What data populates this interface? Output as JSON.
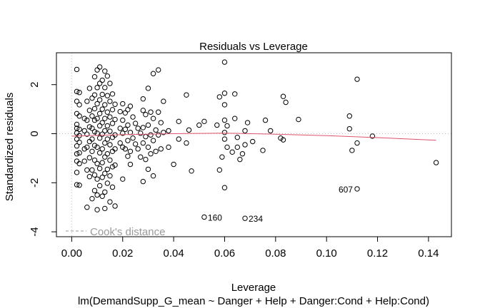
{
  "chart_data": {
    "type": "scatter",
    "title": "Residuals vs Leverage",
    "xlabel": "Leverage",
    "ylabel": "Standardized residuals",
    "subtitle": "lm(DemandSupp_G_mean ~ Danger + Help + Danger:Cond + Help:Cond)",
    "xlim": [
      -0.006,
      0.149
    ],
    "ylim": [
      -4.2,
      3.3
    ],
    "x_ticks": [
      "0.00",
      "0.02",
      "0.04",
      "0.06",
      "0.08",
      "0.10",
      "0.12",
      "0.14"
    ],
    "x_tick_values": [
      0.0,
      0.02,
      0.04,
      0.06,
      0.08,
      0.1,
      0.12,
      0.14
    ],
    "y_ticks": [
      "-4",
      "-2",
      "0",
      "2"
    ],
    "y_tick_values": [
      -4,
      -2,
      0,
      2
    ],
    "legend": {
      "label": "Cook's distance",
      "position": "bottom-left",
      "line_style": "dashed",
      "color": "#9a9a9a"
    },
    "point_color": "#000000",
    "smoother_color": "#df536b",
    "reference_line_color": "#bbbbbb",
    "smoother": [
      [
        0.0,
        -0.1
      ],
      [
        0.01,
        -0.07
      ],
      [
        0.02,
        -0.04
      ],
      [
        0.04,
        0.0
      ],
      [
        0.06,
        0.02
      ],
      [
        0.08,
        -0.02
      ],
      [
        0.1,
        -0.08
      ],
      [
        0.12,
        -0.16
      ],
      [
        0.143,
        -0.27
      ]
    ],
    "labeled_points": [
      {
        "label": "160",
        "x": 0.052,
        "y": -3.4
      },
      {
        "label": "234",
        "x": 0.068,
        "y": -3.45
      },
      {
        "label": "607",
        "x": 0.112,
        "y": -2.25
      }
    ],
    "points": [
      [
        0.002,
        2.62
      ],
      [
        0.002,
        1.72
      ],
      [
        0.002,
        1.32
      ],
      [
        0.002,
        0.82
      ],
      [
        0.002,
        0.38
      ],
      [
        0.002,
        0.22
      ],
      [
        0.002,
        0.03
      ],
      [
        0.002,
        -0.22
      ],
      [
        0.002,
        -0.5
      ],
      [
        0.002,
        -0.82
      ],
      [
        0.002,
        -1.12
      ],
      [
        0.002,
        -1.58
      ],
      [
        0.002,
        -2.08
      ],
      [
        0.003,
        1.68
      ],
      [
        0.003,
        1.18
      ],
      [
        0.003,
        0.72
      ],
      [
        0.003,
        0.18
      ],
      [
        0.003,
        -0.08
      ],
      [
        0.003,
        -0.35
      ],
      [
        0.003,
        -0.78
      ],
      [
        0.003,
        -1.22
      ],
      [
        0.003,
        -2.1
      ],
      [
        0.005,
        0.62
      ],
      [
        0.005,
        0.12
      ],
      [
        0.005,
        -0.62
      ],
      [
        0.005,
        -1.12
      ],
      [
        0.006,
        1.32
      ],
      [
        0.006,
        0.55
      ],
      [
        0.006,
        -0.02
      ],
      [
        0.006,
        -0.55
      ],
      [
        0.006,
        -1.48
      ],
      [
        0.006,
        -3.0
      ],
      [
        0.007,
        1.85
      ],
      [
        0.007,
        0.95
      ],
      [
        0.007,
        0.28
      ],
      [
        0.007,
        -0.32
      ],
      [
        0.007,
        -0.98
      ],
      [
        0.007,
        -1.75
      ],
      [
        0.008,
        1.45
      ],
      [
        0.008,
        0.72
      ],
      [
        0.008,
        0.22
      ],
      [
        0.008,
        -0.22
      ],
      [
        0.008,
        -0.72
      ],
      [
        0.008,
        -1.48
      ],
      [
        0.008,
        -2.65
      ],
      [
        0.009,
        2.32
      ],
      [
        0.009,
        1.58
      ],
      [
        0.009,
        1.02
      ],
      [
        0.009,
        0.55
      ],
      [
        0.009,
        0.08
      ],
      [
        0.009,
        -0.48
      ],
      [
        0.009,
        -1.08
      ],
      [
        0.009,
        -1.68
      ],
      [
        0.009,
        -2.32
      ],
      [
        0.01,
        2.6
      ],
      [
        0.01,
        1.88
      ],
      [
        0.01,
        1.22
      ],
      [
        0.01,
        0.62
      ],
      [
        0.01,
        0.02
      ],
      [
        0.01,
        -0.55
      ],
      [
        0.01,
        -1.22
      ],
      [
        0.01,
        -1.85
      ],
      [
        0.01,
        -2.5
      ],
      [
        0.01,
        -3.1
      ],
      [
        0.011,
        2.72
      ],
      [
        0.011,
        2.05
      ],
      [
        0.011,
        1.38
      ],
      [
        0.011,
        0.82
      ],
      [
        0.011,
        0.32
      ],
      [
        0.011,
        -0.18
      ],
      [
        0.011,
        -0.78
      ],
      [
        0.011,
        -1.42
      ],
      [
        0.011,
        -2.12
      ],
      [
        0.012,
        2.18
      ],
      [
        0.012,
        1.6
      ],
      [
        0.012,
        1.0
      ],
      [
        0.012,
        0.45
      ],
      [
        0.012,
        -0.02
      ],
      [
        0.012,
        -0.62
      ],
      [
        0.012,
        -1.18
      ],
      [
        0.012,
        -1.78
      ],
      [
        0.012,
        -2.55
      ],
      [
        0.013,
        2.55
      ],
      [
        0.013,
        1.88
      ],
      [
        0.013,
        1.18
      ],
      [
        0.013,
        0.62
      ],
      [
        0.013,
        0.12
      ],
      [
        0.013,
        -0.38
      ],
      [
        0.013,
        -0.95
      ],
      [
        0.013,
        -1.62
      ],
      [
        0.013,
        -2.38
      ],
      [
        0.013,
        -3.05
      ],
      [
        0.014,
        2.35
      ],
      [
        0.014,
        1.55
      ],
      [
        0.014,
        0.88
      ],
      [
        0.014,
        0.32
      ],
      [
        0.014,
        -0.22
      ],
      [
        0.014,
        -0.82
      ],
      [
        0.014,
        -1.45
      ],
      [
        0.014,
        -2.02
      ],
      [
        0.015,
        2.05
      ],
      [
        0.015,
        1.32
      ],
      [
        0.015,
        0.68
      ],
      [
        0.015,
        0.1
      ],
      [
        0.015,
        -0.45
      ],
      [
        0.015,
        -1.08
      ],
      [
        0.015,
        -1.72
      ],
      [
        0.015,
        -2.78
      ],
      [
        0.016,
        1.62
      ],
      [
        0.016,
        0.98
      ],
      [
        0.016,
        0.42
      ],
      [
        0.016,
        -0.15
      ],
      [
        0.016,
        -0.72
      ],
      [
        0.016,
        -1.35
      ],
      [
        0.016,
        -2.18
      ],
      [
        0.017,
        1.2
      ],
      [
        0.017,
        0.58
      ],
      [
        0.017,
        -0.05
      ],
      [
        0.017,
        -0.62
      ],
      [
        0.017,
        -1.28
      ],
      [
        0.017,
        -2.95
      ],
      [
        0.019,
        0.9
      ],
      [
        0.019,
        0.22
      ],
      [
        0.019,
        -0.38
      ],
      [
        0.02,
        1.22
      ],
      [
        0.02,
        0.55
      ],
      [
        0.02,
        0.02
      ],
      [
        0.02,
        -0.55
      ],
      [
        0.02,
        -1.85
      ],
      [
        0.021,
        0.85
      ],
      [
        0.021,
        0.18
      ],
      [
        0.021,
        -0.62
      ],
      [
        0.022,
        0.98
      ],
      [
        0.022,
        0.35
      ],
      [
        0.022,
        -0.28
      ],
      [
        0.022,
        -0.92
      ],
      [
        0.023,
        1.12
      ],
      [
        0.023,
        0.05
      ],
      [
        0.023,
        -0.72
      ],
      [
        0.023,
        -1.25
      ],
      [
        0.024,
        0.68
      ],
      [
        0.024,
        -0.18
      ],
      [
        0.025,
        0.42
      ],
      [
        0.025,
        -0.42
      ],
      [
        0.026,
        0.22
      ],
      [
        0.026,
        -0.62
      ],
      [
        0.027,
        0.02
      ],
      [
        0.027,
        -0.95
      ],
      [
        0.028,
        1.42
      ],
      [
        0.028,
        0.95
      ],
      [
        0.028,
        0.25
      ],
      [
        0.028,
        -0.38
      ],
      [
        0.028,
        -1.95
      ],
      [
        0.029,
        0.78
      ],
      [
        0.029,
        -0.12
      ],
      [
        0.029,
        -1.05
      ],
      [
        0.03,
        1.85
      ],
      [
        0.03,
        0.35
      ],
      [
        0.03,
        -0.55
      ],
      [
        0.03,
        -1.45
      ],
      [
        0.031,
        0.88
      ],
      [
        0.031,
        -0.05
      ],
      [
        0.031,
        -0.82
      ],
      [
        0.032,
        2.45
      ],
      [
        0.032,
        0.62
      ],
      [
        0.032,
        -0.28
      ],
      [
        0.032,
        -1.72
      ],
      [
        0.033,
        0.15
      ],
      [
        0.033,
        -0.72
      ],
      [
        0.034,
        2.6
      ],
      [
        0.034,
        0.88
      ],
      [
        0.034,
        -0.05
      ],
      [
        0.035,
        0.45
      ],
      [
        0.035,
        -0.62
      ],
      [
        0.036,
        1.32
      ],
      [
        0.036,
        0.05
      ],
      [
        0.038,
        0.12
      ],
      [
        0.038,
        -0.55
      ],
      [
        0.04,
        -1.25
      ],
      [
        0.042,
        0.5
      ],
      [
        0.042,
        -0.22
      ],
      [
        0.045,
        1.58
      ],
      [
        0.045,
        -0.38
      ],
      [
        0.046,
        0.15
      ],
      [
        0.047,
        -1.52
      ],
      [
        0.05,
        0.35
      ],
      [
        0.052,
        0.5
      ],
      [
        0.052,
        -3.4
      ],
      [
        0.057,
        0.35
      ],
      [
        0.058,
        1.5
      ],
      [
        0.058,
        -1.48
      ],
      [
        0.059,
        -0.95
      ],
      [
        0.06,
        2.92
      ],
      [
        0.06,
        1.65
      ],
      [
        0.06,
        1.18
      ],
      [
        0.06,
        0.55
      ],
      [
        0.06,
        0.05
      ],
      [
        0.06,
        -0.22
      ],
      [
        0.06,
        -2.2
      ],
      [
        0.061,
        0.32
      ],
      [
        0.061,
        -0.55
      ],
      [
        0.063,
        -0.75
      ],
      [
        0.064,
        1.62
      ],
      [
        0.064,
        0.62
      ],
      [
        0.065,
        -0.15
      ],
      [
        0.065,
        -0.55
      ],
      [
        0.066,
        -1.05
      ],
      [
        0.067,
        -0.82
      ],
      [
        0.068,
        0.12
      ],
      [
        0.068,
        -0.45
      ],
      [
        0.068,
        -3.45
      ],
      [
        0.069,
        0.45
      ],
      [
        0.071,
        -0.32
      ],
      [
        0.075,
        -0.68
      ],
      [
        0.076,
        0.55
      ],
      [
        0.078,
        0.12
      ],
      [
        0.082,
        -0.18
      ],
      [
        0.083,
        1.52
      ],
      [
        0.083,
        -0.25
      ],
      [
        0.084,
        1.28
      ],
      [
        0.089,
        0.58
      ],
      [
        0.109,
        0.72
      ],
      [
        0.109,
        0.2
      ],
      [
        0.11,
        -0.68
      ],
      [
        0.112,
        2.22
      ],
      [
        0.112,
        -0.38
      ],
      [
        0.112,
        -2.25
      ],
      [
        0.118,
        -0.1
      ],
      [
        0.143,
        -1.18
      ]
    ]
  }
}
